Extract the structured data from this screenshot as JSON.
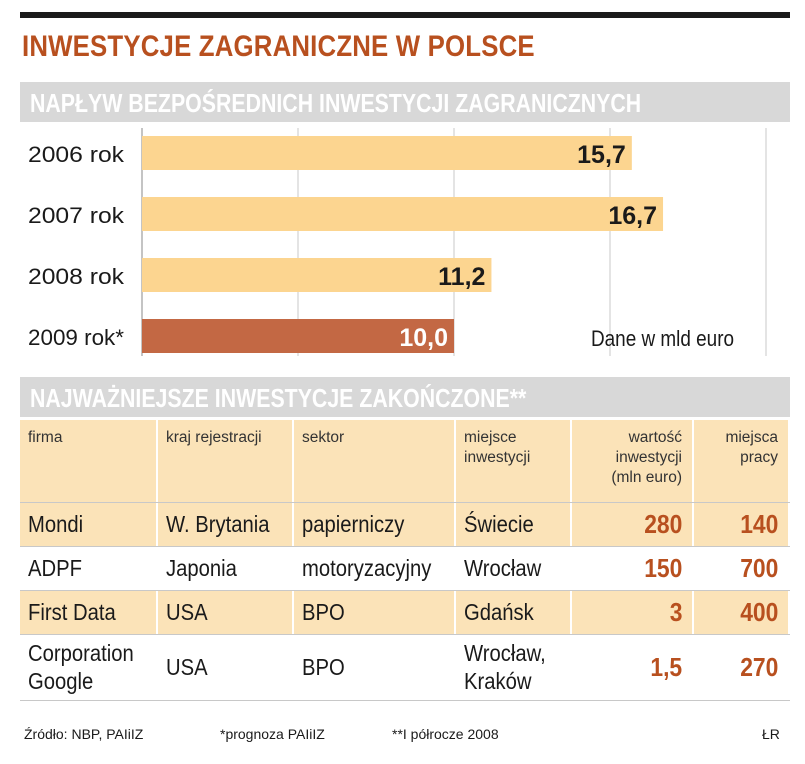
{
  "title": "INWESTYCJE ZAGRANICZNE W POLSCE",
  "section1": "NAPŁYW BEZPOŚREDNICH INWESTYCJI ZAGRANICZNYCH",
  "section2": "NAJWAŻNIEJSZE INWESTYCJE ZAKOŃCZONE**",
  "colors": {
    "accent": "#b8501f",
    "bar": "#fcd590",
    "bar_forecast": "#c36844",
    "band": "#d8d8d8",
    "table_alt": "#fbe3b8"
  },
  "chart_data": {
    "type": "bar",
    "orientation": "horizontal",
    "categories": [
      "2006 rok",
      "2007 rok",
      "2008 rok",
      "2009 rok*"
    ],
    "values": [
      15.7,
      16.7,
      11.2,
      10.0
    ],
    "value_labels": [
      "15,7",
      "16,7",
      "11,2",
      "10,0"
    ],
    "forecast": [
      false,
      false,
      false,
      true
    ],
    "xlim": [
      0,
      20
    ],
    "grid": true,
    "note": "Dane w mld euro"
  },
  "table": {
    "headers": [
      "firma",
      "kraj rejestracji",
      "sektor",
      "miejsce\ninwestycji",
      "wartość\ninwestycji\n(mln euro)",
      "miejsca\npracy"
    ],
    "rows": [
      [
        "Mondi",
        "W. Brytania",
        "papierniczy",
        "Świecie",
        "280",
        "140"
      ],
      [
        "ADPF",
        "Japonia",
        "motoryzacyjny",
        "Wrocław",
        "150",
        "700"
      ],
      [
        "First Data",
        "USA",
        "BPO",
        "Gdańsk",
        "3",
        "400"
      ],
      [
        "Corporation\nGoogle",
        "USA",
        "BPO",
        "Wrocław,\nKraków",
        "1,5",
        "270"
      ]
    ]
  },
  "footer": {
    "source": "Źródło: NBP, PAIiIZ",
    "note1": "*prognoza PAIiIZ",
    "note2": "**I półrocze 2008",
    "author": "ŁR"
  }
}
